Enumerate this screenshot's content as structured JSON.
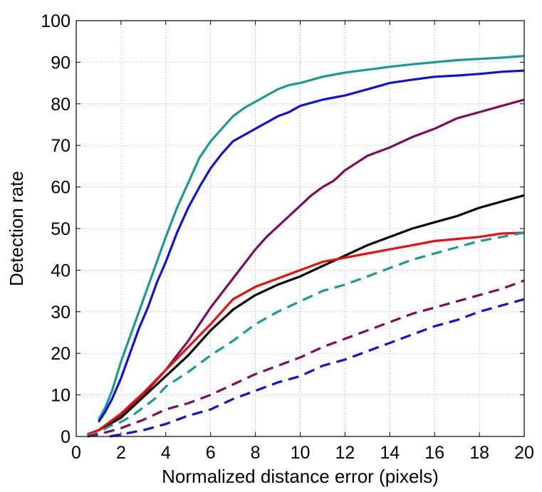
{
  "chart_data": {
    "type": "line",
    "title": "",
    "xlabel": "Normalized distance error (pixels)",
    "ylabel": "Detection rate",
    "xlim": [
      0,
      20
    ],
    "ylim": [
      0,
      100
    ],
    "xticks": [
      0,
      2,
      4,
      6,
      8,
      10,
      12,
      14,
      16,
      18,
      20
    ],
    "yticks": [
      0,
      10,
      20,
      30,
      40,
      50,
      60,
      70,
      80,
      90,
      100
    ],
    "grid": true,
    "legend": "none",
    "series": [
      {
        "name": "teal-solid",
        "color": "#1a9a96",
        "dash": "solid",
        "x": [
          1,
          1.3,
          1.6,
          2,
          2.4,
          2.8,
          3.2,
          3.6,
          4,
          4.5,
          5,
          5.5,
          6,
          6.5,
          7,
          7.5,
          8,
          8.5,
          9,
          9.5,
          10,
          11,
          12,
          13,
          14,
          15,
          16,
          17,
          18,
          19,
          20
        ],
        "y": [
          4,
          7,
          11,
          18,
          24,
          30,
          36,
          42,
          48,
          55,
          61,
          67,
          71,
          74,
          77,
          79,
          80.5,
          82,
          83.5,
          84.5,
          85,
          86.5,
          87.5,
          88.2,
          88.9,
          89.5,
          90,
          90.5,
          90.8,
          91.1,
          91.5
        ]
      },
      {
        "name": "blue-solid",
        "color": "#1010e0",
        "dash": "solid",
        "x": [
          1,
          1.3,
          1.6,
          2,
          2.4,
          2.8,
          3.2,
          3.6,
          4,
          4.5,
          5,
          5.5,
          6,
          6.5,
          7,
          7.5,
          8,
          8.5,
          9,
          9.5,
          10,
          11,
          12,
          13,
          14,
          15,
          16,
          17,
          18,
          19,
          20
        ],
        "y": [
          3.5,
          6,
          9,
          14,
          20,
          26,
          31,
          37,
          42,
          49,
          55,
          60,
          64.5,
          68,
          71,
          72.5,
          74,
          75.5,
          77,
          78,
          79.5,
          81,
          82,
          83.5,
          85,
          85.8,
          86.5,
          86.8,
          87.2,
          87.7,
          88
        ]
      },
      {
        "name": "purple-solid",
        "color": "#820a5a",
        "dash": "solid",
        "x": [
          0.5,
          1,
          1.5,
          2,
          3,
          4,
          4.5,
          5,
          5.5,
          6,
          6.5,
          7,
          7.5,
          8,
          8.5,
          9,
          9.5,
          10,
          10.5,
          11,
          11.5,
          12,
          13,
          14,
          15,
          16,
          17,
          18,
          19,
          20
        ],
        "y": [
          0.5,
          1.5,
          3,
          5,
          10,
          16,
          19.5,
          23,
          27,
          31,
          34.5,
          38,
          41.5,
          45,
          48,
          50.5,
          53,
          55.5,
          58,
          60,
          61.5,
          64,
          67.5,
          69.5,
          72,
          74,
          76.5,
          78,
          79.5,
          81
        ]
      },
      {
        "name": "black-solid",
        "color": "#000000",
        "dash": "solid",
        "x": [
          0.5,
          1,
          1.5,
          2,
          3,
          4,
          5,
          6,
          7,
          8,
          9,
          10,
          11,
          12,
          13,
          14,
          15,
          16,
          17,
          18,
          19,
          20
        ],
        "y": [
          0.5,
          1.5,
          3,
          4.5,
          9.5,
          14.5,
          19.5,
          25.5,
          30.5,
          34,
          36.5,
          38.5,
          41,
          43.5,
          46,
          48,
          50,
          51.5,
          53,
          55,
          56.5,
          58
        ]
      },
      {
        "name": "red-solid",
        "color": "#f00c0c",
        "dash": "solid",
        "x": [
          0.5,
          1,
          1.5,
          2,
          3,
          4,
          5,
          6,
          7,
          8,
          9,
          10,
          11,
          12,
          13,
          14,
          15,
          16,
          17,
          18,
          19,
          20
        ],
        "y": [
          0.5,
          1.5,
          3.5,
          5.5,
          10.5,
          16,
          21.5,
          27,
          33,
          36,
          38,
          40,
          42,
          43,
          44,
          45,
          46,
          47,
          47.5,
          48,
          48.8,
          49
        ]
      },
      {
        "name": "teal-dashed",
        "color": "#1a9a96",
        "dash": "dashed",
        "x": [
          0.5,
          1,
          1.5,
          2,
          2.5,
          3,
          3.5,
          4,
          5,
          6,
          7,
          8,
          9,
          10,
          11,
          12,
          13,
          14,
          15,
          16,
          17,
          18,
          19,
          20
        ],
        "y": [
          0.2,
          1,
          2.5,
          3.5,
          5,
          7,
          9,
          12,
          15.5,
          19.5,
          23,
          27,
          30,
          32.5,
          35,
          36.5,
          38.5,
          40.5,
          42.5,
          44,
          45.5,
          47,
          48,
          49
        ]
      },
      {
        "name": "purple-dashed",
        "color": "#820a5a",
        "dash": "dashed",
        "x": [
          0.5,
          1,
          2,
          3,
          4,
          5,
          6,
          7,
          8,
          9,
          10,
          11,
          12,
          13,
          14,
          15,
          16,
          17,
          18,
          19,
          20
        ],
        "y": [
          0,
          0.5,
          2,
          4,
          6.5,
          8,
          10,
          12.5,
          15,
          17,
          19,
          21.5,
          23.5,
          25.5,
          27.5,
          29.5,
          31,
          32.5,
          34,
          35.5,
          37.5
        ]
      },
      {
        "name": "blue-dashed",
        "color": "#1010e0",
        "dash": "dashed",
        "x": [
          1.5,
          2,
          3,
          4,
          5,
          6,
          7,
          8,
          9,
          10,
          11,
          12,
          13,
          14,
          15,
          16,
          17,
          18,
          19,
          20
        ],
        "y": [
          0,
          0.5,
          1.5,
          3,
          5,
          6.5,
          9,
          11,
          13,
          14.5,
          17,
          18.5,
          20.5,
          22.5,
          24.5,
          26.5,
          28,
          30,
          31.5,
          33
        ]
      }
    ]
  }
}
